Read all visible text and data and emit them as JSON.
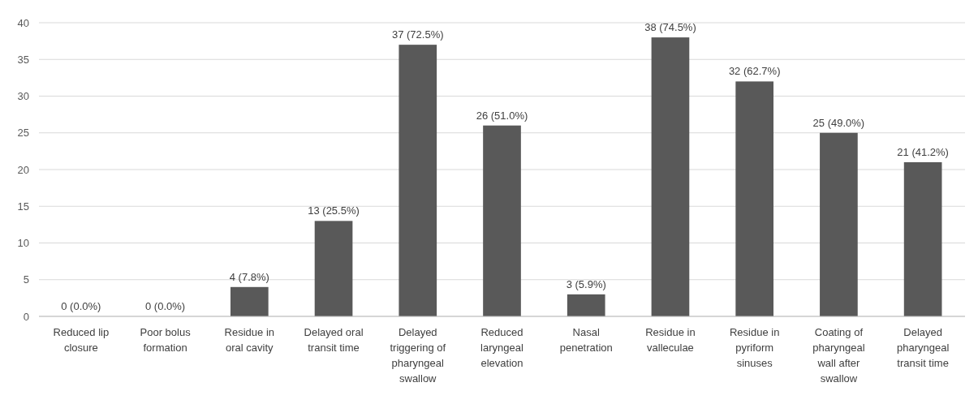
{
  "chart_data": {
    "type": "bar",
    "categories": [
      "Reduced lip closure",
      "Poor bolus formation",
      "Residue in oral cavity",
      "Delayed oral transit time",
      "Delayed triggering of pharyngeal swallow",
      "Reduced laryngeal elevation",
      "Nasal penetration",
      "Residue in valleculae",
      "Residue in pyriform sinuses",
      "Coating of pharyngeal wall after swallow",
      "Delayed pharyngeal transit time"
    ],
    "values": [
      0,
      0,
      4,
      13,
      37,
      26,
      3,
      38,
      32,
      25,
      21
    ],
    "value_labels": [
      "0 (0.0%)",
      "0 (0.0%)",
      "4 (7.8%)",
      "13 (25.5%)",
      "37 (72.5%)",
      "26 (51.0%)",
      "3 (5.9%)",
      "38 (74.5%)",
      "32 (62.7%)",
      "25 (49.0%)",
      "21 (41.2%)"
    ],
    "color": "#595959",
    "ylim": [
      0,
      40
    ],
    "yticks": [
      0,
      5,
      10,
      15,
      20,
      25,
      30,
      35,
      40
    ],
    "grid": "y"
  }
}
